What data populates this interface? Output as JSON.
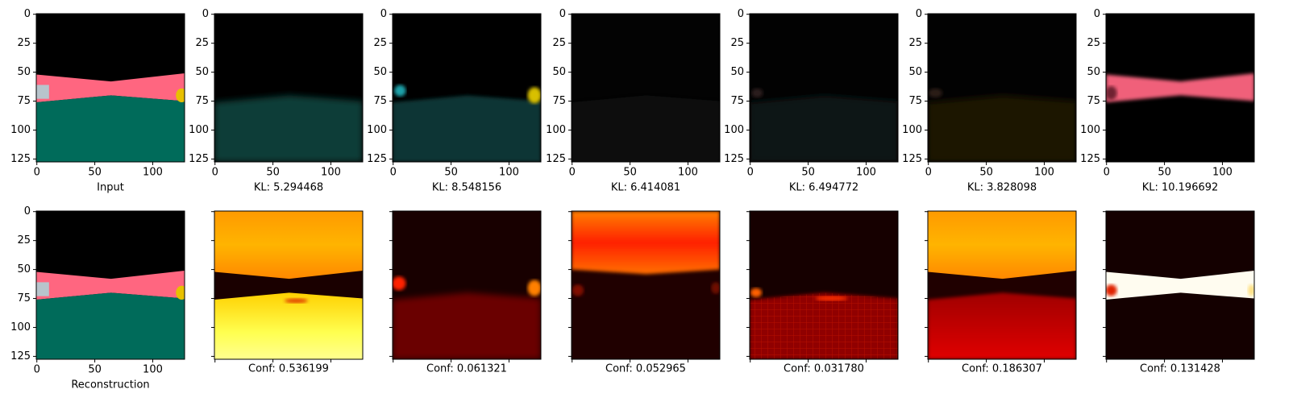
{
  "axis": {
    "extent": [
      -0.5,
      127.5
    ],
    "xticks": [
      0,
      50,
      100
    ],
    "yticks": [
      0,
      25,
      50,
      75,
      100,
      125
    ]
  },
  "rows": [
    {
      "panels": [
        {
          "caption": "Input"
        },
        {
          "caption": "KL: 5.294468"
        },
        {
          "caption": "KL: 8.548156"
        },
        {
          "caption": "KL: 6.414081"
        },
        {
          "caption": "KL: 6.494772"
        },
        {
          "caption": "KL: 3.828098"
        },
        {
          "caption": "KL: 10.196692"
        }
      ]
    },
    {
      "panels": [
        {
          "caption": "Reconstruction"
        },
        {
          "caption": "Conf: 0.536199"
        },
        {
          "caption": "Conf: 0.061321"
        },
        {
          "caption": "Conf: 0.052965"
        },
        {
          "caption": "Conf: 0.031780"
        },
        {
          "caption": "Conf: 0.186307"
        },
        {
          "caption": "Conf: 0.131428"
        }
      ]
    }
  ]
}
